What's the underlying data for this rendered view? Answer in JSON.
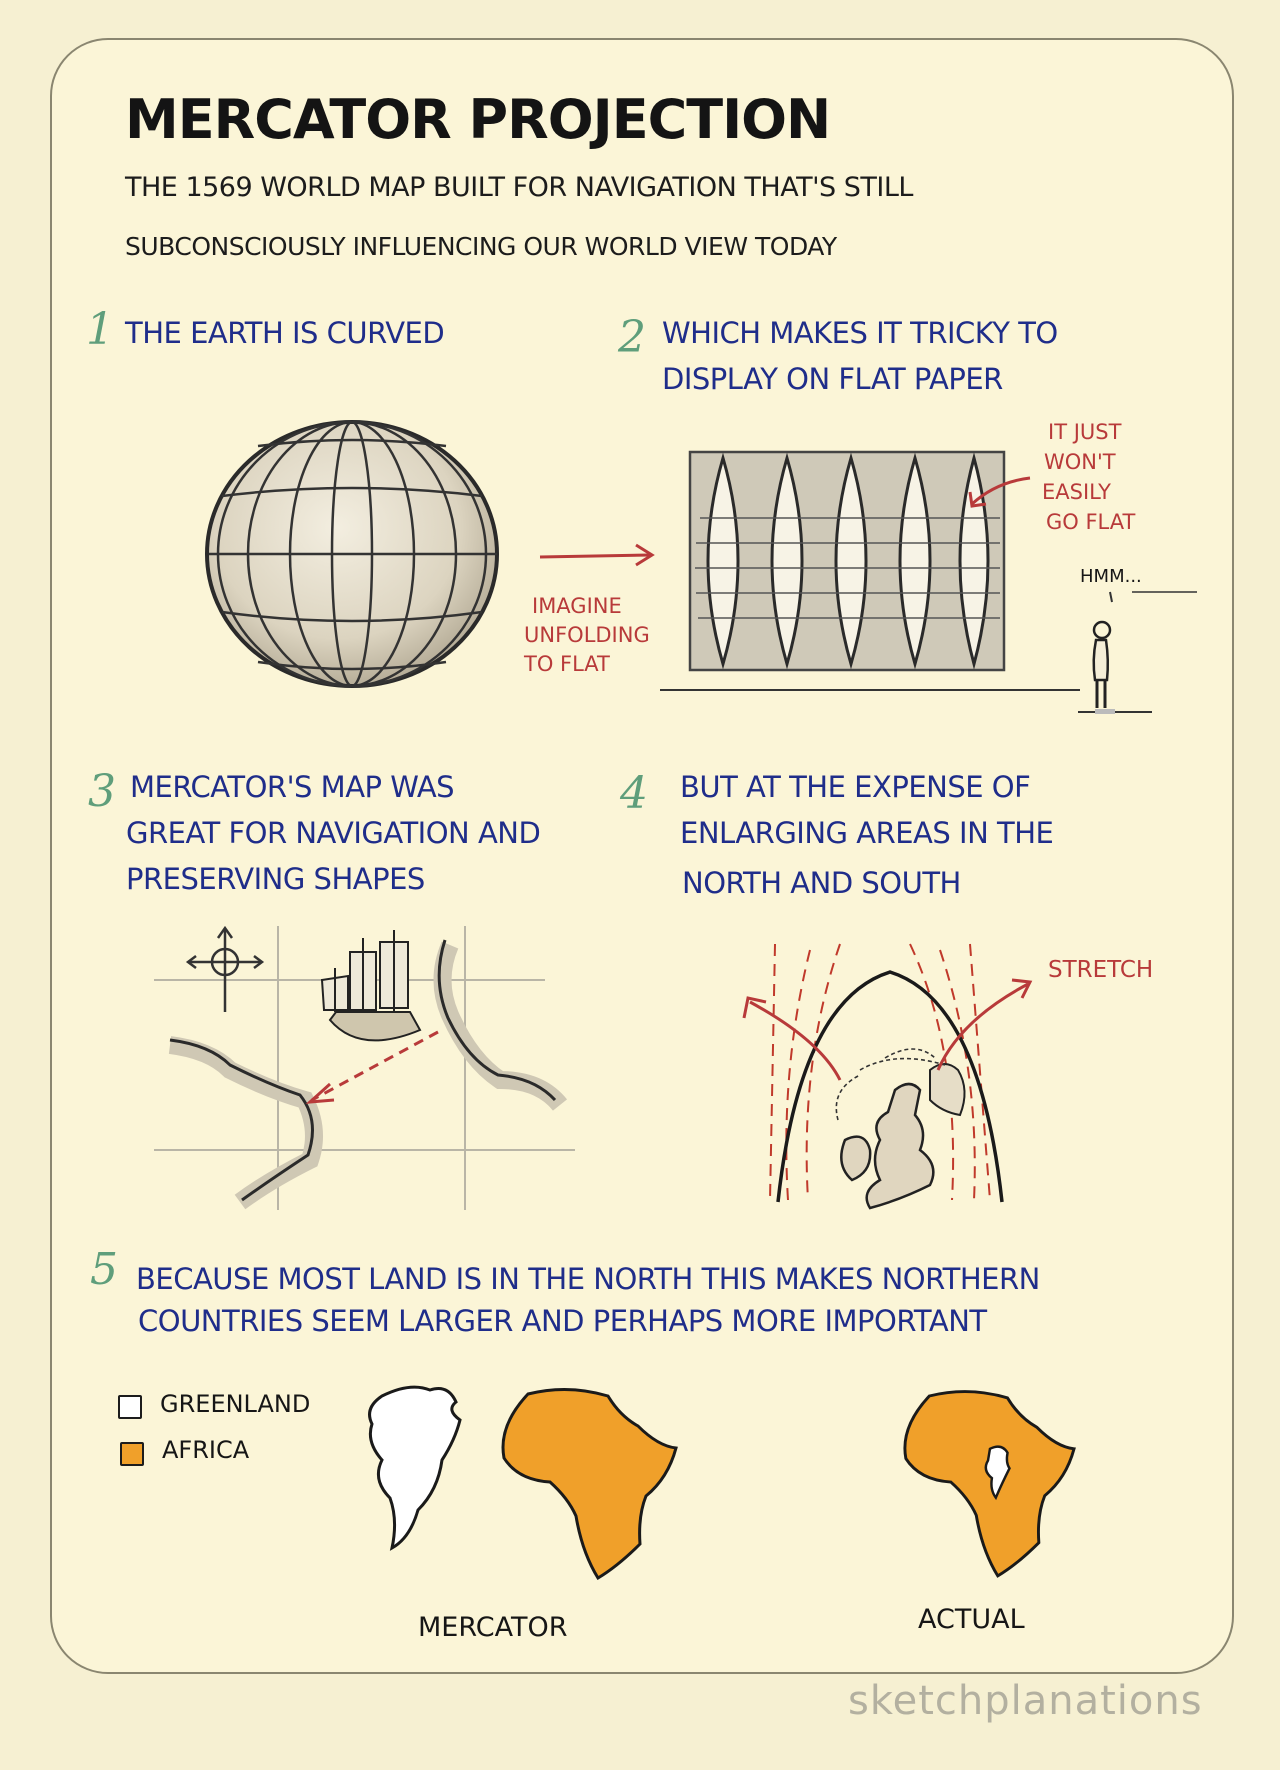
{
  "title": "MERCATOR PROJECTION",
  "subtitle": [
    "THE 1569 WORLD MAP BUILT FOR NAVIGATION THAT'S STILL",
    "SUBCONSCIOUSLY INFLUENCING OUR WORLD VIEW TODAY"
  ],
  "sections": {
    "s1": {
      "number": "1",
      "lines": [
        "THE EARTH IS CURVED"
      ]
    },
    "s2": {
      "number": "2",
      "lines": [
        "WHICH MAKES IT TRICKY TO",
        "DISPLAY ON FLAT PAPER"
      ]
    },
    "s3": {
      "number": "3",
      "lines": [
        "MERCATOR'S MAP WAS",
        "GREAT FOR NAVIGATION AND",
        "PRESERVING SHAPES"
      ]
    },
    "s4": {
      "number": "4",
      "lines": [
        "BUT AT THE EXPENSE OF",
        "ENLARGING AREAS IN THE",
        "NORTH AND SOUTH"
      ]
    },
    "s5": {
      "number": "5",
      "lines": [
        "BECAUSE MOST LAND IS IN THE NORTH THIS MAKES NORTHERN",
        "COUNTRIES SEEM LARGER AND PERHAPS MORE IMPORTANT"
      ]
    }
  },
  "notes": {
    "imagine": [
      "IMAGINE",
      "UNFOLDING",
      "TO FLAT"
    ],
    "wont": [
      "IT JUST",
      "WON'T",
      "EASILY",
      "GO FLAT"
    ],
    "hmm": "HMM...",
    "stretch": "STRETCH"
  },
  "legend": [
    {
      "label": "GREENLAND",
      "color": "#ffffff"
    },
    {
      "label": "AFRICA",
      "color": "#f0a02a"
    }
  ],
  "captions": {
    "mercator": "MERCATOR",
    "actual": "ACTUAL"
  },
  "brand": "sketchplanations",
  "colors": {
    "heading": "#1f2d8a",
    "number": "#5f9e7b",
    "note": "#b83a3a",
    "africa": "#f0a02a",
    "ink": "#161616"
  }
}
